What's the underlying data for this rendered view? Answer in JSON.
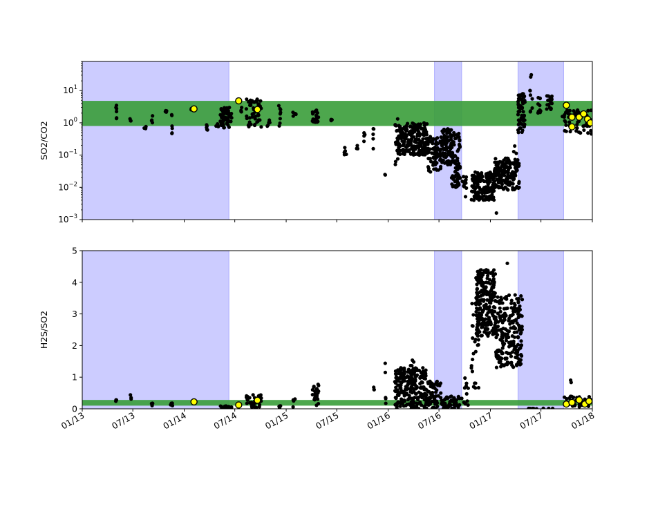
{
  "chart_data": [
    {
      "type": "scatter",
      "ylabel": "SO2/CO2",
      "yscale": "log",
      "ylim": [
        0.001,
        80
      ],
      "xlim": [
        "2013-01-01",
        "2018-01-01"
      ],
      "yticks": [
        {
          "value": 0.001,
          "base": "10",
          "exp": "−3"
        },
        {
          "value": 0.01,
          "base": "10",
          "exp": "−2"
        },
        {
          "value": 0.1,
          "base": "10",
          "exp": "−1"
        },
        {
          "value": 1,
          "base": "10",
          "exp": "0"
        },
        {
          "value": 10,
          "base": "10",
          "exp": "1"
        }
      ],
      "shaded_periods": [
        {
          "start": "2013-01-01",
          "end": "2014-06-10"
        },
        {
          "start": "2016-06-15",
          "end": "2016-09-20"
        },
        {
          "start": "2017-04-10",
          "end": "2017-09-20"
        }
      ],
      "green_band": [
        0.8,
        4.8
      ],
      "series": [
        {
          "color": "#000000",
          "clusters": [
            {
              "start": "2013-05-01",
              "end": "2013-05-05",
              "lo": 0.9,
              "hi": 3.5,
              "n": 6
            },
            {
              "start": "2013-06-20",
              "end": "2013-06-25",
              "lo": 1.1,
              "hi": 1.4,
              "n": 3
            },
            {
              "start": "2013-08-10",
              "end": "2013-08-18",
              "lo": 0.6,
              "hi": 0.8,
              "n": 3
            },
            {
              "start": "2013-09-05",
              "end": "2013-09-10",
              "lo": 0.9,
              "hi": 1.8,
              "n": 4
            },
            {
              "start": "2013-10-25",
              "end": "2013-10-30",
              "lo": 2.0,
              "hi": 2.8,
              "n": 4
            },
            {
              "start": "2013-11-15",
              "end": "2013-11-20",
              "lo": 0.4,
              "hi": 2.2,
              "n": 6
            },
            {
              "start": "2014-01-20",
              "end": "2014-02-05",
              "lo": 2.4,
              "hi": 2.8,
              "n": 3
            },
            {
              "start": "2014-03-20",
              "end": "2014-03-28",
              "lo": 0.6,
              "hi": 2.2,
              "n": 5
            },
            {
              "start": "2014-04-25",
              "end": "2014-05-05",
              "lo": 0.6,
              "hi": 1.0,
              "n": 4
            },
            {
              "start": "2014-05-10",
              "end": "2014-06-20",
              "lo": 0.7,
              "hi": 3.0,
              "n": 60
            },
            {
              "start": "2014-07-20",
              "end": "2014-07-28",
              "lo": 1.5,
              "hi": 4.5,
              "n": 4
            },
            {
              "start": "2014-08-10",
              "end": "2014-10-05",
              "lo": 0.7,
              "hi": 5.5,
              "n": 50
            },
            {
              "start": "2014-10-25",
              "end": "2014-11-05",
              "lo": 0.7,
              "hi": 1.5,
              "n": 5
            },
            {
              "start": "2014-12-05",
              "end": "2014-12-12",
              "lo": 0.8,
              "hi": 3.5,
              "n": 8
            },
            {
              "start": "2015-01-25",
              "end": "2015-02-05",
              "lo": 1.5,
              "hi": 2.5,
              "n": 5
            },
            {
              "start": "2015-04-05",
              "end": "2015-04-28",
              "lo": 1.0,
              "hi": 2.5,
              "n": 20
            },
            {
              "start": "2015-06-10",
              "end": "2015-06-15",
              "lo": 1.0,
              "hi": 1.4,
              "n": 3
            },
            {
              "start": "2015-07-28",
              "end": "2015-08-05",
              "lo": 0.1,
              "hi": 0.2,
              "n": 6
            },
            {
              "start": "2015-09-10",
              "end": "2015-09-15",
              "lo": 0.15,
              "hi": 0.2,
              "n": 3
            },
            {
              "start": "2015-10-05",
              "end": "2015-10-10",
              "lo": 0.25,
              "hi": 0.5,
              "n": 4
            },
            {
              "start": "2015-11-05",
              "end": "2015-11-12",
              "lo": 0.15,
              "hi": 0.8,
              "n": 5
            },
            {
              "start": "2015-12-20",
              "end": "2015-12-25",
              "lo": 0.02,
              "hi": 0.03,
              "n": 2
            },
            {
              "start": "2016-01-25",
              "end": "2016-02-05",
              "lo": 0.05,
              "hi": 1.5,
              "n": 15
            },
            {
              "start": "2016-02-05",
              "end": "2016-05-20",
              "lo": 0.1,
              "hi": 1.0,
              "n": 220
            },
            {
              "start": "2016-05-20",
              "end": "2016-07-10",
              "lo": 0.03,
              "hi": 0.4,
              "n": 80
            },
            {
              "start": "2016-07-10",
              "end": "2016-08-15",
              "lo": 0.05,
              "hi": 0.7,
              "n": 80
            },
            {
              "start": "2016-08-15",
              "end": "2016-09-15",
              "lo": 0.01,
              "hi": 0.5,
              "n": 80
            },
            {
              "start": "2016-09-20",
              "end": "2016-10-10",
              "lo": 0.005,
              "hi": 0.025,
              "n": 12
            },
            {
              "start": "2016-10-25",
              "end": "2017-01-15",
              "lo": 0.004,
              "hi": 0.03,
              "n": 170
            },
            {
              "start": "2017-01-15",
              "end": "2017-04-15",
              "lo": 0.008,
              "hi": 0.08,
              "n": 170
            },
            {
              "start": "2017-01-20",
              "end": "2017-01-25",
              "lo": 0.0016,
              "hi": 0.0016,
              "n": 1
            },
            {
              "start": "2017-03-25",
              "end": "2017-04-10",
              "lo": 0.1,
              "hi": 0.2,
              "n": 3
            },
            {
              "start": "2017-04-10",
              "end": "2017-05-05",
              "lo": 0.5,
              "hi": 8.0,
              "n": 70
            },
            {
              "start": "2017-05-20",
              "end": "2017-06-01",
              "lo": 2.0,
              "hi": 45,
              "n": 9
            },
            {
              "start": "2017-06-20",
              "end": "2017-06-30",
              "lo": 2.0,
              "hi": 8.0,
              "n": 10
            },
            {
              "start": "2017-07-20",
              "end": "2017-08-10",
              "lo": 2.5,
              "hi": 7.0,
              "n": 20
            },
            {
              "start": "2017-09-15",
              "end": "2017-12-31",
              "lo": 0.45,
              "hi": 2.5,
              "n": 55
            }
          ]
        },
        {
          "color": "#ffff00",
          "points": [
            {
              "x": "2014-02-05",
              "y": 2.7
            },
            {
              "x": "2014-07-15",
              "y": 4.8
            },
            {
              "x": "2014-09-20",
              "y": 2.6
            },
            {
              "x": "2017-09-30",
              "y": 3.5
            },
            {
              "x": "2017-10-20",
              "y": 1.5
            },
            {
              "x": "2017-10-20",
              "y": 0.75
            },
            {
              "x": "2017-11-15",
              "y": 1.5
            },
            {
              "x": "2017-12-01",
              "y": 1.9
            },
            {
              "x": "2017-12-15",
              "y": 1.3
            },
            {
              "x": "2017-12-25",
              "y": 1.0
            }
          ]
        }
      ]
    },
    {
      "type": "scatter",
      "ylabel": "H2S/SO2",
      "yscale": "linear",
      "ylim": [
        0,
        5
      ],
      "xlim": [
        "2013-01-01",
        "2018-01-01"
      ],
      "yticks": [
        {
          "value": 0,
          "label": "0"
        },
        {
          "value": 1,
          "label": "1"
        },
        {
          "value": 2,
          "label": "2"
        },
        {
          "value": 3,
          "label": "3"
        },
        {
          "value": 4,
          "label": "4"
        },
        {
          "value": 5,
          "label": "5"
        }
      ],
      "xticks": [
        {
          "x": "2013-01-01",
          "label": "01/13"
        },
        {
          "x": "2013-07-01",
          "label": "07/13"
        },
        {
          "x": "2014-01-01",
          "label": "01/14"
        },
        {
          "x": "2014-07-01",
          "label": "07/14"
        },
        {
          "x": "2015-01-01",
          "label": "01/15"
        },
        {
          "x": "2015-07-01",
          "label": "07/15"
        },
        {
          "x": "2016-01-01",
          "label": "01/16"
        },
        {
          "x": "2016-07-01",
          "label": "07/16"
        },
        {
          "x": "2017-01-01",
          "label": "01/17"
        },
        {
          "x": "2017-07-01",
          "label": "07/17"
        },
        {
          "x": "2018-01-01",
          "label": "01/18"
        }
      ],
      "shaded_periods": [
        {
          "start": "2013-01-01",
          "end": "2014-06-10"
        },
        {
          "start": "2016-06-15",
          "end": "2016-09-20"
        },
        {
          "start": "2017-04-10",
          "end": "2017-09-20"
        }
      ],
      "green_band": [
        0.1,
        0.28
      ],
      "series": [
        {
          "color": "#000000",
          "clusters": [
            {
              "start": "2013-05-01",
              "end": "2013-05-05",
              "lo": 0.2,
              "hi": 0.3,
              "n": 3
            },
            {
              "start": "2013-06-20",
              "end": "2013-06-25",
              "lo": 0.25,
              "hi": 0.45,
              "n": 3
            },
            {
              "start": "2013-09-05",
              "end": "2013-09-10",
              "lo": 0.1,
              "hi": 0.4,
              "n": 4
            },
            {
              "start": "2013-11-01",
              "end": "2013-11-20",
              "lo": 0.05,
              "hi": 0.2,
              "n": 4
            },
            {
              "start": "2014-05-10",
              "end": "2014-06-20",
              "lo": 0.0,
              "hi": 0.1,
              "n": 30
            },
            {
              "start": "2014-08-10",
              "end": "2014-10-05",
              "lo": 0.0,
              "hi": 0.45,
              "n": 40
            },
            {
              "start": "2014-12-05",
              "end": "2014-12-12",
              "lo": 0.0,
              "hi": 0.1,
              "n": 4
            },
            {
              "start": "2015-01-25",
              "end": "2015-02-05",
              "lo": 0.0,
              "hi": 0.45,
              "n": 4
            },
            {
              "start": "2015-04-05",
              "end": "2015-04-28",
              "lo": 0.1,
              "hi": 0.8,
              "n": 25
            },
            {
              "start": "2015-11-05",
              "end": "2015-11-12",
              "lo": 0.6,
              "hi": 0.7,
              "n": 3
            },
            {
              "start": "2015-12-20",
              "end": "2015-12-25",
              "lo": 0.1,
              "hi": 1.5,
              "n": 5
            },
            {
              "start": "2016-01-25",
              "end": "2016-05-20",
              "lo": 0.0,
              "hi": 1.3,
              "n": 240
            },
            {
              "start": "2016-03-20",
              "end": "2016-04-10",
              "lo": 1.0,
              "hi": 1.6,
              "n": 8
            },
            {
              "start": "2016-05-20",
              "end": "2016-07-10",
              "lo": 0.0,
              "hi": 0.9,
              "n": 60
            },
            {
              "start": "2016-07-10",
              "end": "2016-09-15",
              "lo": 0.0,
              "hi": 0.4,
              "n": 50
            },
            {
              "start": "2016-09-15",
              "end": "2016-10-15",
              "lo": 0.0,
              "hi": 1.0,
              "n": 12
            },
            {
              "start": "2016-10-25",
              "end": "2016-11-20",
              "lo": 0.5,
              "hi": 3.4,
              "n": 30
            },
            {
              "start": "2016-11-10",
              "end": "2017-01-20",
              "lo": 2.3,
              "hi": 4.4,
              "n": 230
            },
            {
              "start": "2017-01-20",
              "end": "2017-04-25",
              "lo": 1.3,
              "hi": 3.6,
              "n": 220
            },
            {
              "start": "2017-03-01",
              "end": "2017-03-10",
              "lo": 4.6,
              "hi": 4.6,
              "n": 1
            },
            {
              "start": "2017-05-15",
              "end": "2017-08-15",
              "lo": 0.0,
              "hi": 0.02,
              "n": 10
            },
            {
              "start": "2017-10-15",
              "end": "2017-10-20",
              "lo": 0.6,
              "hi": 1.1,
              "n": 2
            },
            {
              "start": "2017-09-20",
              "end": "2017-12-31",
              "lo": 0.05,
              "hi": 0.4,
              "n": 35
            }
          ]
        },
        {
          "color": "#ffff00",
          "points": [
            {
              "x": "2014-02-05",
              "y": 0.22
            },
            {
              "x": "2014-07-15",
              "y": 0.12
            },
            {
              "x": "2014-09-20",
              "y": 0.27
            },
            {
              "x": "2017-09-30",
              "y": 0.15
            },
            {
              "x": "2017-10-20",
              "y": 0.2
            },
            {
              "x": "2017-11-15",
              "y": 0.28
            },
            {
              "x": "2017-12-05",
              "y": 0.15
            },
            {
              "x": "2017-12-20",
              "y": 0.24
            }
          ]
        }
      ]
    }
  ],
  "colors": {
    "shade": "#ccccff",
    "shade_edge": "#aaaaff",
    "green": "#3a9d3a",
    "marker": "#000000",
    "highlight": "#ffff00"
  }
}
